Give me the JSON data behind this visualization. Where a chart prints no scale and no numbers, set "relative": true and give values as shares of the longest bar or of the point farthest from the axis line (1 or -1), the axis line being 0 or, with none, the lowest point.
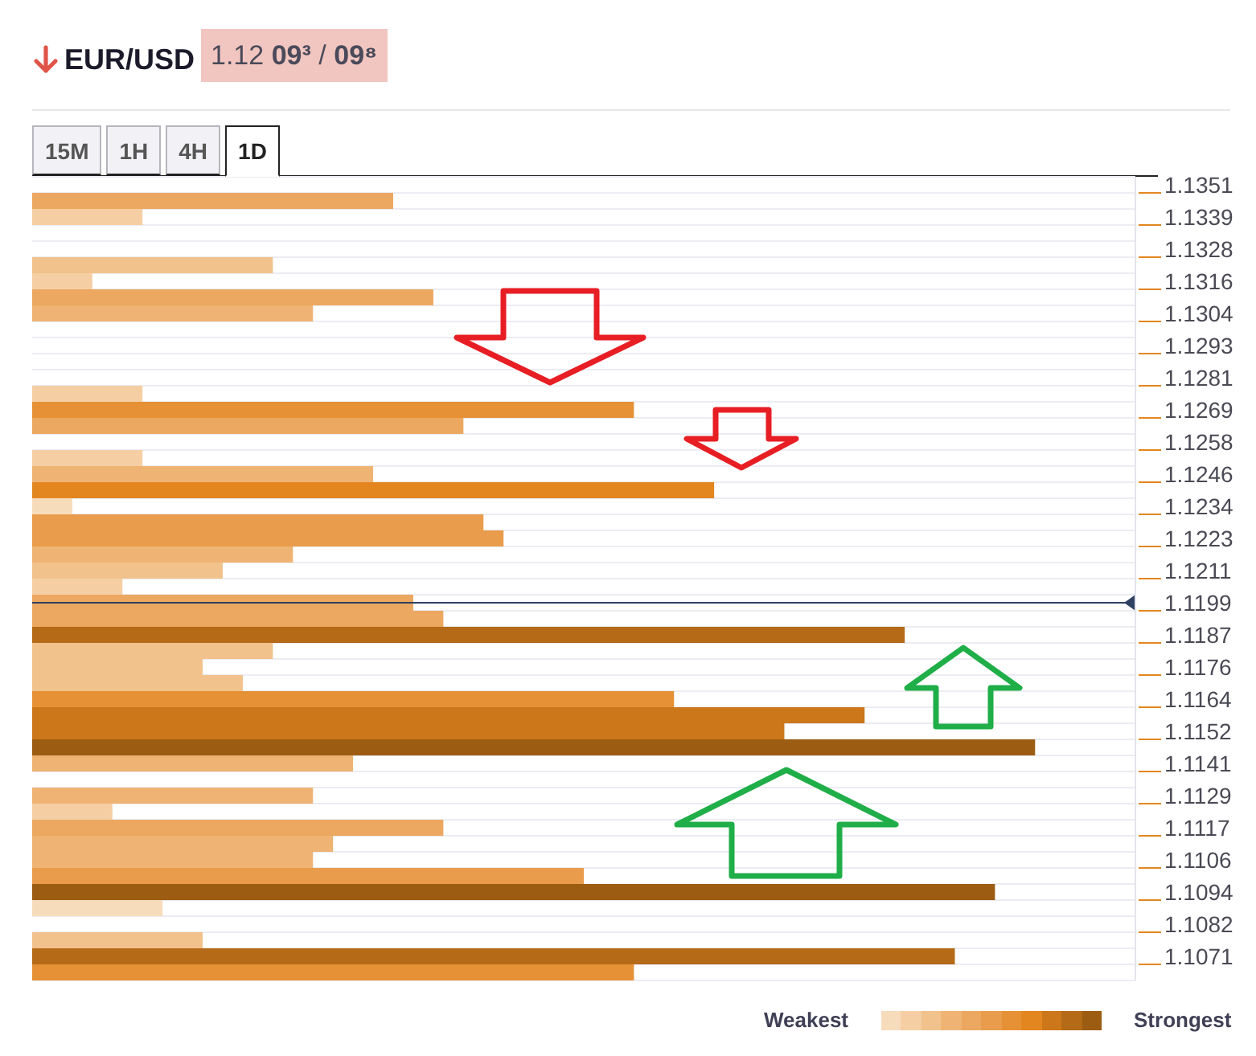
{
  "chart_data": {
    "type": "bar",
    "orientation": "horizontal",
    "relative": true,
    "title": "EUR/USD",
    "subtitle": "1.12 09³ / 09⁸",
    "categories": [
      "1.1351",
      null,
      "1.1339",
      null,
      "1.1328",
      null,
      "1.1316",
      null,
      "1.1304",
      null,
      "1.1293",
      null,
      "1.1281",
      null,
      "1.1269",
      null,
      "1.1258",
      null,
      "1.1246",
      null,
      "1.1234",
      null,
      "1.1223",
      null,
      "1.1211",
      null,
      "1.1199",
      null,
      "1.1187",
      null,
      "1.1176",
      null,
      "1.1164",
      null,
      "1.1152",
      null,
      "1.1141",
      null,
      "1.1129",
      null,
      "1.1117",
      null,
      "1.1106",
      null,
      "1.1094",
      null,
      "1.1082",
      null,
      "1.1071",
      null
    ],
    "values": [
      null,
      0.36,
      0.11,
      null,
      null,
      0.24,
      0.06,
      0.4,
      0.28,
      null,
      null,
      null,
      null,
      0.11,
      0.6,
      0.43,
      null,
      0.11,
      0.34,
      0.68,
      0.04,
      0.45,
      0.47,
      0.26,
      0.19,
      0.09,
      0.38,
      0.41,
      0.87,
      0.24,
      0.17,
      0.21,
      0.64,
      0.83,
      0.75,
      1,
      0.32,
      null,
      0.28,
      0.08,
      0.41,
      0.3,
      0.28,
      0.55,
      0.96,
      0.13,
      null,
      0.17,
      0.92,
      0.6
    ],
    "colors": [
      null,
      "#eca860",
      "#f5cfa3",
      null,
      null,
      "#f2c28c",
      "#f5cfa3",
      "#eca860",
      "#efb474",
      null,
      null,
      null,
      null,
      "#f5cfa3",
      "#e69135",
      "#eca860",
      null,
      "#f5cfa3",
      "#efb474",
      "#e3861f",
      "#f7dcbc",
      "#e99c4b",
      "#e99c4b",
      "#efb474",
      "#f2c28c",
      "#f5cfa3",
      "#eca860",
      "#eca860",
      "#b46a16",
      "#f2c28c",
      "#f2c28c",
      "#f2c28c",
      "#e69135",
      "#cc7719",
      "#cc7719",
      "#9c5c12",
      "#efb474",
      null,
      "#efb474",
      "#f5cfa3",
      "#eca860",
      "#efb474",
      "#efb474",
      "#e99c4b",
      "#9c5c12",
      "#f7dcbc",
      null,
      "#f2c28c",
      "#b46a16",
      "#e69135"
    ],
    "grid": "y",
    "ref_lines": [
      {
        "axis": "y",
        "value": "1.1199",
        "color": "#2f4163"
      }
    ],
    "annotations": [
      "15M",
      "1H",
      "4H",
      "1D",
      "Weakest",
      "Strongest"
    ]
  }
}
